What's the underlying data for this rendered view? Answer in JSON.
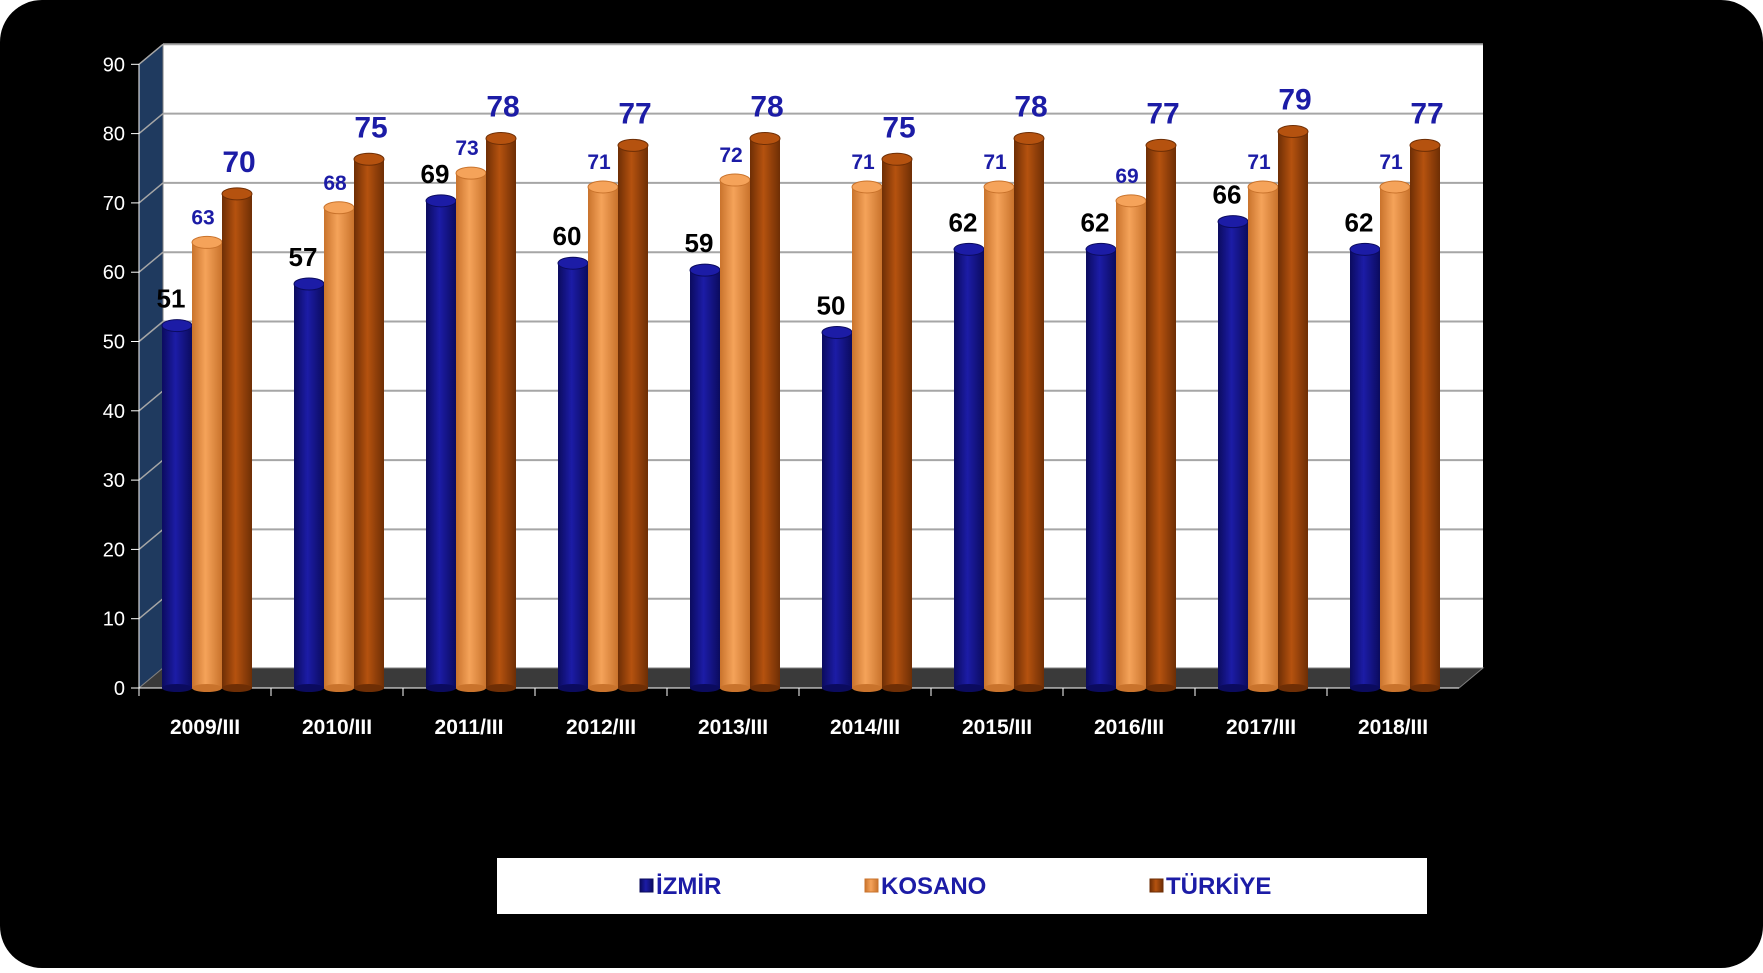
{
  "chart_data": {
    "type": "bar",
    "categories": [
      "2009/III",
      "2010/III",
      "2011/III",
      "2012/III",
      "2013/III",
      "2014/III",
      "2015/III",
      "2016/III",
      "2017/III",
      "2018/III"
    ],
    "series": [
      {
        "name": "İZMİR",
        "values": [
          51,
          57,
          69,
          60,
          59,
          50,
          62,
          62,
          66,
          62
        ]
      },
      {
        "name": "KOSANO",
        "values": [
          63,
          68,
          73,
          71,
          72,
          71,
          71,
          69,
          71,
          71
        ]
      },
      {
        "name": "TÜRKİYE",
        "values": [
          70,
          75,
          78,
          77,
          78,
          75,
          78,
          77,
          79,
          77
        ]
      }
    ],
    "y_ticks": [
      0,
      10,
      20,
      30,
      40,
      50,
      60,
      70,
      80,
      90
    ],
    "ylim": [
      0,
      90
    ],
    "grid": true,
    "legend": "bottom",
    "colors": {
      "background": "#000000",
      "plot_area": "#ffffff",
      "side_wall": "#1f3a5f",
      "floor": "#3a3a3a",
      "gridline": "#a6a6a6",
      "series": [
        "#1c1ca6",
        "#f5a35a",
        "#b5520f"
      ],
      "series_dark": [
        "#0b0b5e",
        "#c9732c",
        "#6e2e05"
      ],
      "label_colors": [
        "#000000",
        "#1c1ca6",
        "#1c1ca6"
      ]
    }
  }
}
